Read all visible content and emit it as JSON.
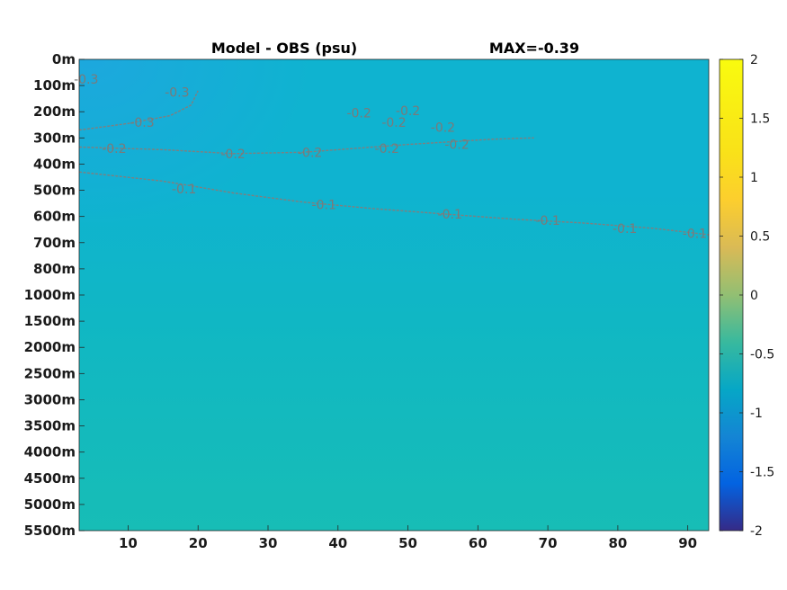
{
  "chart_data": {
    "type": "heatmap",
    "title": "Model - OBS (psu)",
    "annotation": "MAX=-0.39",
    "xlabel": "",
    "ylabel": "",
    "xlim": [
      3,
      93
    ],
    "x_ticks": [
      10,
      20,
      30,
      40,
      50,
      60,
      70,
      80,
      90
    ],
    "y_tick_labels": [
      "0m",
      "100m",
      "200m",
      "300m",
      "400m",
      "500m",
      "600m",
      "700m",
      "800m",
      "1000m",
      "1500m",
      "2000m",
      "2500m",
      "3000m",
      "3500m",
      "4000m",
      "4500m",
      "5000m",
      "5500m"
    ],
    "colorbar": {
      "colormap": "parula",
      "range": [
        -2,
        2
      ],
      "ticks": [
        "2",
        "1.5",
        "1",
        "0.5",
        "0",
        "-0.5",
        "-1",
        "-1.5",
        "-2"
      ]
    },
    "field_colors": {
      "surface_left": "#1fa6e0",
      "upper": "#0fb3d0",
      "mid": "#10b7c4",
      "deep": "#17bdb6",
      "contour": "#7f7f7f"
    },
    "contours": [
      {
        "level": -0.3,
        "label": "-0.3",
        "points": [
          [
            3,
            270
          ],
          [
            10,
            245
          ],
          [
            16,
            215
          ],
          [
            19,
            175
          ],
          [
            20,
            120
          ]
        ],
        "label_at": [
          [
            12,
            240
          ],
          [
            17,
            125
          ],
          [
            4,
            75
          ]
        ]
      },
      {
        "level": -0.2,
        "label": "-0.2",
        "points": [
          [
            3,
            335
          ],
          [
            15,
            345
          ],
          [
            25,
            360
          ],
          [
            35,
            355
          ],
          [
            45,
            335
          ],
          [
            50,
            325
          ],
          [
            56,
            315
          ],
          [
            62,
            305
          ],
          [
            68,
            300
          ]
        ],
        "label_at": [
          [
            8,
            340
          ],
          [
            25,
            360
          ],
          [
            36,
            355
          ],
          [
            47,
            340
          ],
          [
            57,
            325
          ],
          [
            43,
            205
          ],
          [
            48,
            240
          ],
          [
            55,
            260
          ],
          [
            50,
            195
          ]
        ]
      },
      {
        "level": -0.1,
        "label": "-0.1",
        "points": [
          [
            3,
            430
          ],
          [
            15,
            465
          ],
          [
            25,
            510
          ],
          [
            35,
            545
          ],
          [
            45,
            570
          ],
          [
            55,
            590
          ],
          [
            65,
            610
          ],
          [
            75,
            625
          ],
          [
            85,
            645
          ],
          [
            93,
            670
          ]
        ],
        "label_at": [
          [
            18,
            495
          ],
          [
            38,
            555
          ],
          [
            56,
            590
          ],
          [
            70,
            615
          ],
          [
            81,
            645
          ],
          [
            91,
            665
          ]
        ]
      }
    ]
  }
}
